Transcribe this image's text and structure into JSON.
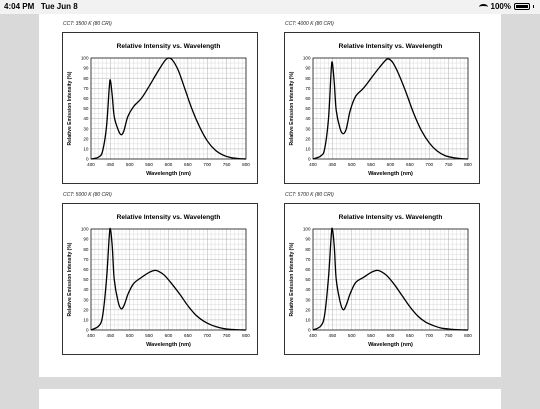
{
  "status_bar": {
    "time": "4:04 PM",
    "date": "Tue Jun 8",
    "battery": "100%"
  },
  "chart_data": [
    {
      "type": "line",
      "caption": "CCT: 3500 K (80 CRI)",
      "title": "Relative Intensity vs. Wavelength",
      "xlabel": "Wavelength (nm)",
      "ylabel": "Relative Emission Intensity (%)",
      "xlim": [
        400,
        800
      ],
      "ylim": [
        0,
        100
      ],
      "xticks": [
        400,
        450,
        500,
        550,
        600,
        650,
        700,
        750,
        800
      ],
      "yticks": [
        0,
        10,
        20,
        30,
        40,
        50,
        60,
        70,
        80,
        90,
        100
      ],
      "grid": true,
      "series": [
        {
          "values": [
            [
              400,
              0
            ],
            [
              420,
              2
            ],
            [
              430,
              8
            ],
            [
              440,
              32
            ],
            [
              447,
              70
            ],
            [
              450,
              78
            ],
            [
              455,
              62
            ],
            [
              460,
              42
            ],
            [
              470,
              29
            ],
            [
              478,
              24
            ],
            [
              485,
              28
            ],
            [
              495,
              42
            ],
            [
              510,
              52
            ],
            [
              530,
              60
            ],
            [
              550,
              72
            ],
            [
              570,
              85
            ],
            [
              590,
              97
            ],
            [
              600,
              100
            ],
            [
              610,
              98
            ],
            [
              625,
              88
            ],
            [
              640,
              72
            ],
            [
              660,
              50
            ],
            [
              680,
              32
            ],
            [
              700,
              18
            ],
            [
              720,
              9
            ],
            [
              740,
              4
            ],
            [
              760,
              1.5
            ],
            [
              780,
              0.5
            ],
            [
              800,
              0
            ]
          ]
        }
      ]
    },
    {
      "type": "line",
      "caption": "CCT: 4000 K (80 CRI)",
      "title": "Relative Intensity vs. Wavelength",
      "xlabel": "Wavelength (nm)",
      "ylabel": "Relative Emission Intensity (%)",
      "xlim": [
        400,
        800
      ],
      "ylim": [
        0,
        100
      ],
      "xticks": [
        400,
        450,
        500,
        550,
        600,
        650,
        700,
        750,
        800
      ],
      "yticks": [
        0,
        10,
        20,
        30,
        40,
        50,
        60,
        70,
        80,
        90,
        100
      ],
      "grid": true,
      "series": [
        {
          "values": [
            [
              400,
              0
            ],
            [
              420,
              3
            ],
            [
              430,
              10
            ],
            [
              440,
              40
            ],
            [
              447,
              88
            ],
            [
              450,
              95
            ],
            [
              455,
              75
            ],
            [
              460,
              48
            ],
            [
              470,
              30
            ],
            [
              478,
              25
            ],
            [
              486,
              30
            ],
            [
              496,
              48
            ],
            [
              510,
              62
            ],
            [
              530,
              70
            ],
            [
              550,
              80
            ],
            [
              570,
              90
            ],
            [
              588,
              98
            ],
            [
              595,
              99
            ],
            [
              605,
              96
            ],
            [
              620,
              85
            ],
            [
              640,
              66
            ],
            [
              660,
              45
            ],
            [
              680,
              28
            ],
            [
              700,
              16
            ],
            [
              720,
              8
            ],
            [
              740,
              3.5
            ],
            [
              760,
              1.5
            ],
            [
              780,
              0.5
            ],
            [
              800,
              0
            ]
          ]
        }
      ]
    },
    {
      "type": "line",
      "caption": "CCT: 5000 K (80 CRI)",
      "title": "Relative Intensity vs. Wavelength",
      "xlabel": "Wavelength (nm)",
      "ylabel": "Relative Emission Intensity (%)",
      "xlim": [
        400,
        800
      ],
      "ylim": [
        0,
        100
      ],
      "xticks": [
        400,
        450,
        500,
        550,
        600,
        650,
        700,
        750,
        800
      ],
      "yticks": [
        0,
        10,
        20,
        30,
        40,
        50,
        60,
        70,
        80,
        90,
        100
      ],
      "grid": true,
      "series": [
        {
          "values": [
            [
              400,
              0
            ],
            [
              420,
              4
            ],
            [
              430,
              14
            ],
            [
              440,
              50
            ],
            [
              447,
              92
            ],
            [
              450,
              100
            ],
            [
              455,
              82
            ],
            [
              460,
              50
            ],
            [
              470,
              28
            ],
            [
              478,
              21
            ],
            [
              486,
              25
            ],
            [
              496,
              36
            ],
            [
              510,
              46
            ],
            [
              530,
              52
            ],
            [
              550,
              57
            ],
            [
              565,
              59
            ],
            [
              575,
              58
            ],
            [
              590,
              54
            ],
            [
              610,
              45
            ],
            [
              630,
              35
            ],
            [
              650,
              24
            ],
            [
              670,
              15
            ],
            [
              690,
              9
            ],
            [
              710,
              5
            ],
            [
              730,
              2.5
            ],
            [
              750,
              1
            ],
            [
              770,
              0.4
            ],
            [
              800,
              0
            ]
          ]
        }
      ]
    },
    {
      "type": "line",
      "caption": "CCT: 5700 K (80 CRI)",
      "title": "Relative Intensity vs. Wavelength",
      "xlabel": "Wavelength (nm)",
      "ylabel": "Relative Emission Intensity (%)",
      "xlim": [
        400,
        800
      ],
      "ylim": [
        0,
        100
      ],
      "xticks": [
        400,
        450,
        500,
        550,
        600,
        650,
        700,
        750,
        800
      ],
      "yticks": [
        0,
        10,
        20,
        30,
        40,
        50,
        60,
        70,
        80,
        90,
        100
      ],
      "grid": true,
      "series": [
        {
          "values": [
            [
              400,
              0
            ],
            [
              420,
              4
            ],
            [
              430,
              15
            ],
            [
              440,
              52
            ],
            [
              447,
              93
            ],
            [
              450,
              100
            ],
            [
              455,
              82
            ],
            [
              460,
              50
            ],
            [
              470,
              28
            ],
            [
              478,
              20
            ],
            [
              486,
              25
            ],
            [
              496,
              36
            ],
            [
              510,
              47
            ],
            [
              530,
              52
            ],
            [
              550,
              57
            ],
            [
              565,
              59
            ],
            [
              575,
              58
            ],
            [
              590,
              54
            ],
            [
              610,
              45
            ],
            [
              630,
              34
            ],
            [
              650,
              23
            ],
            [
              670,
              14
            ],
            [
              690,
              8
            ],
            [
              710,
              4.5
            ],
            [
              730,
              2
            ],
            [
              750,
              1
            ],
            [
              770,
              0.4
            ],
            [
              800,
              0
            ]
          ]
        }
      ]
    }
  ]
}
